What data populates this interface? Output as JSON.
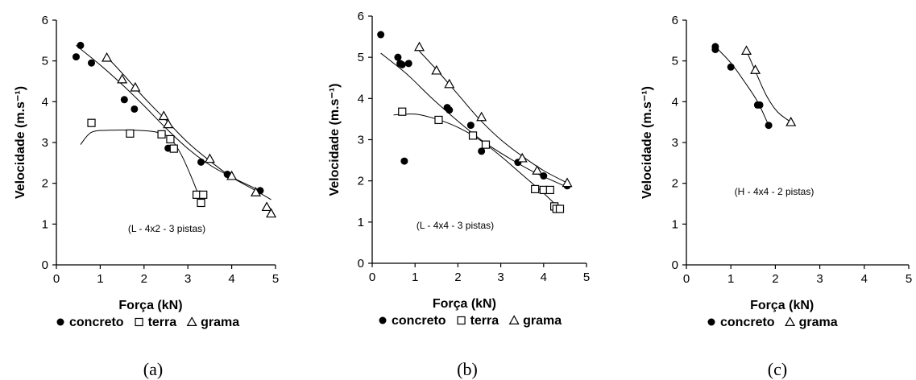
{
  "chart_data": [
    {
      "type": "scatter",
      "caption": "(a)",
      "note": "(L - 4x2 - 3 pistas)",
      "xlabel": "Força (kN)",
      "ylabel": "Velocidade (m.s⁻¹)",
      "xlim": [
        0,
        5
      ],
      "ylim": [
        0,
        6
      ],
      "xticks": [
        0,
        1,
        2,
        3,
        4,
        5
      ],
      "yticks": [
        0,
        1,
        2,
        3,
        4,
        5,
        6
      ],
      "grid": false,
      "legend_position": "bottom",
      "series": [
        {
          "name": "concreto",
          "marker": "circle",
          "points": [
            [
              0.45,
              5.1
            ],
            [
              0.55,
              5.38
            ],
            [
              0.8,
              4.95
            ],
            [
              1.55,
              4.05
            ],
            [
              1.78,
              3.82
            ],
            [
              2.55,
              2.86
            ],
            [
              3.3,
              2.52
            ],
            [
              3.9,
              2.22
            ],
            [
              4.65,
              1.82
            ]
          ],
          "trend": [
            [
              0.45,
              5.38
            ],
            [
              1.0,
              4.9
            ],
            [
              1.5,
              4.42
            ],
            [
              2.0,
              3.9
            ],
            [
              2.5,
              3.35
            ],
            [
              3.0,
              2.85
            ],
            [
              3.5,
              2.45
            ],
            [
              4.0,
              2.15
            ],
            [
              4.65,
              1.82
            ]
          ]
        },
        {
          "name": "terra",
          "marker": "square",
          "points": [
            [
              0.8,
              3.48
            ],
            [
              1.68,
              3.22
            ],
            [
              2.4,
              3.2
            ],
            [
              2.6,
              3.08
            ],
            [
              2.68,
              2.85
            ],
            [
              3.2,
              1.72
            ],
            [
              3.35,
              1.72
            ],
            [
              3.3,
              1.52
            ]
          ],
          "trend": [
            [
              0.55,
              2.95
            ],
            [
              0.8,
              3.25
            ],
            [
              1.2,
              3.3
            ],
            [
              1.8,
              3.3
            ],
            [
              2.3,
              3.25
            ],
            [
              2.6,
              3.1
            ],
            [
              2.85,
              2.7
            ],
            [
              3.1,
              2.1
            ],
            [
              3.3,
              1.55
            ]
          ]
        },
        {
          "name": "grama",
          "marker": "triangle",
          "points": [
            [
              1.15,
              5.08
            ],
            [
              1.5,
              4.55
            ],
            [
              1.8,
              4.35
            ],
            [
              2.45,
              3.65
            ],
            [
              2.55,
              3.45
            ],
            [
              3.5,
              2.6
            ],
            [
              4.0,
              2.18
            ],
            [
              4.55,
              1.78
            ],
            [
              4.8,
              1.42
            ],
            [
              4.9,
              1.26
            ]
          ],
          "trend": [
            [
              1.15,
              5.1
            ],
            [
              1.5,
              4.7
            ],
            [
              2.0,
              4.1
            ],
            [
              2.5,
              3.55
            ],
            [
              3.0,
              3.0
            ],
            [
              3.5,
              2.55
            ],
            [
              4.0,
              2.15
            ],
            [
              4.5,
              1.85
            ],
            [
              4.9,
              1.6
            ]
          ]
        }
      ]
    },
    {
      "type": "scatter",
      "caption": "(b)",
      "note": "(L - 4x4 - 3 pistas)",
      "xlabel": "Força (kN)",
      "ylabel": "Velocidade (m.s⁻¹)",
      "xlim": [
        0,
        5
      ],
      "ylim": [
        0,
        6
      ],
      "xticks": [
        0,
        1,
        2,
        3,
        4,
        5
      ],
      "yticks": [
        0,
        1,
        2,
        3,
        4,
        5,
        6
      ],
      "grid": false,
      "legend_position": "bottom",
      "series": [
        {
          "name": "concreto",
          "marker": "circle",
          "points": [
            [
              0.2,
              5.55
            ],
            [
              0.6,
              5.0
            ],
            [
              0.65,
              4.85
            ],
            [
              0.7,
              4.82
            ],
            [
              0.85,
              4.85
            ],
            [
              1.75,
              3.78
            ],
            [
              1.8,
              3.72
            ],
            [
              2.3,
              3.35
            ],
            [
              2.55,
              2.72
            ],
            [
              3.4,
              2.45
            ],
            [
              4.0,
              2.12
            ],
            [
              4.55,
              1.88
            ],
            [
              0.75,
              2.48
            ]
          ],
          "trend": [
            [
              0.2,
              5.1
            ],
            [
              0.8,
              4.6
            ],
            [
              1.4,
              4.0
            ],
            [
              2.0,
              3.45
            ],
            [
              2.6,
              2.95
            ],
            [
              3.2,
              2.55
            ],
            [
              3.8,
              2.2
            ],
            [
              4.55,
              1.85
            ]
          ]
        },
        {
          "name": "terra",
          "marker": "square",
          "points": [
            [
              0.7,
              3.68
            ],
            [
              1.55,
              3.48
            ],
            [
              2.35,
              3.1
            ],
            [
              2.65,
              2.88
            ],
            [
              3.8,
              1.8
            ],
            [
              4.0,
              1.78
            ],
            [
              4.15,
              1.78
            ],
            [
              4.25,
              1.38
            ],
            [
              4.3,
              1.32
            ],
            [
              4.38,
              1.32
            ]
          ],
          "trend": [
            [
              0.5,
              3.6
            ],
            [
              1.0,
              3.62
            ],
            [
              1.5,
              3.5
            ],
            [
              2.0,
              3.3
            ],
            [
              2.5,
              3.0
            ],
            [
              3.0,
              2.6
            ],
            [
              3.5,
              2.15
            ],
            [
              4.0,
              1.7
            ],
            [
              4.35,
              1.35
            ]
          ]
        },
        {
          "name": "grama",
          "marker": "triangle",
          "points": [
            [
              1.1,
              5.25
            ],
            [
              1.5,
              4.68
            ],
            [
              1.8,
              4.35
            ],
            [
              2.55,
              3.55
            ],
            [
              3.5,
              2.55
            ],
            [
              3.85,
              2.25
            ],
            [
              4.55,
              1.95
            ]
          ],
          "trend": [
            [
              1.1,
              5.15
            ],
            [
              1.5,
              4.7
            ],
            [
              2.0,
              4.1
            ],
            [
              2.5,
              3.5
            ],
            [
              3.0,
              3.0
            ],
            [
              3.5,
              2.6
            ],
            [
              4.0,
              2.25
            ],
            [
              4.55,
              1.95
            ]
          ]
        }
      ]
    },
    {
      "type": "scatter",
      "caption": "(c)",
      "note": "(H - 4x4 - 2  pistas)",
      "xlabel": "Força (kN)",
      "ylabel": "Velocidade (m.s⁻¹)",
      "xlim": [
        0,
        5
      ],
      "ylim": [
        0,
        6
      ],
      "xticks": [
        0,
        1,
        2,
        3,
        4,
        5
      ],
      "yticks": [
        0,
        1,
        2,
        3,
        4,
        5,
        6
      ],
      "grid": false,
      "legend_position": "bottom",
      "series": [
        {
          "name": "concreto",
          "marker": "circle",
          "points": [
            [
              0.65,
              5.35
            ],
            [
              0.65,
              5.28
            ],
            [
              1.0,
              4.85
            ],
            [
              1.6,
              3.92
            ],
            [
              1.65,
              3.92
            ],
            [
              1.85,
              3.42
            ]
          ],
          "trend": [
            [
              0.65,
              5.35
            ],
            [
              1.0,
              4.95
            ],
            [
              1.3,
              4.5
            ],
            [
              1.6,
              4.0
            ],
            [
              1.85,
              3.42
            ]
          ]
        },
        {
          "name": "grama",
          "marker": "triangle",
          "points": [
            [
              1.35,
              5.25
            ],
            [
              1.55,
              4.78
            ],
            [
              2.35,
              3.5
            ]
          ],
          "trend": [
            [
              1.35,
              5.25
            ],
            [
              1.55,
              4.75
            ],
            [
              1.8,
              4.15
            ],
            [
              2.05,
              3.75
            ],
            [
              2.35,
              3.5
            ]
          ]
        }
      ]
    }
  ]
}
